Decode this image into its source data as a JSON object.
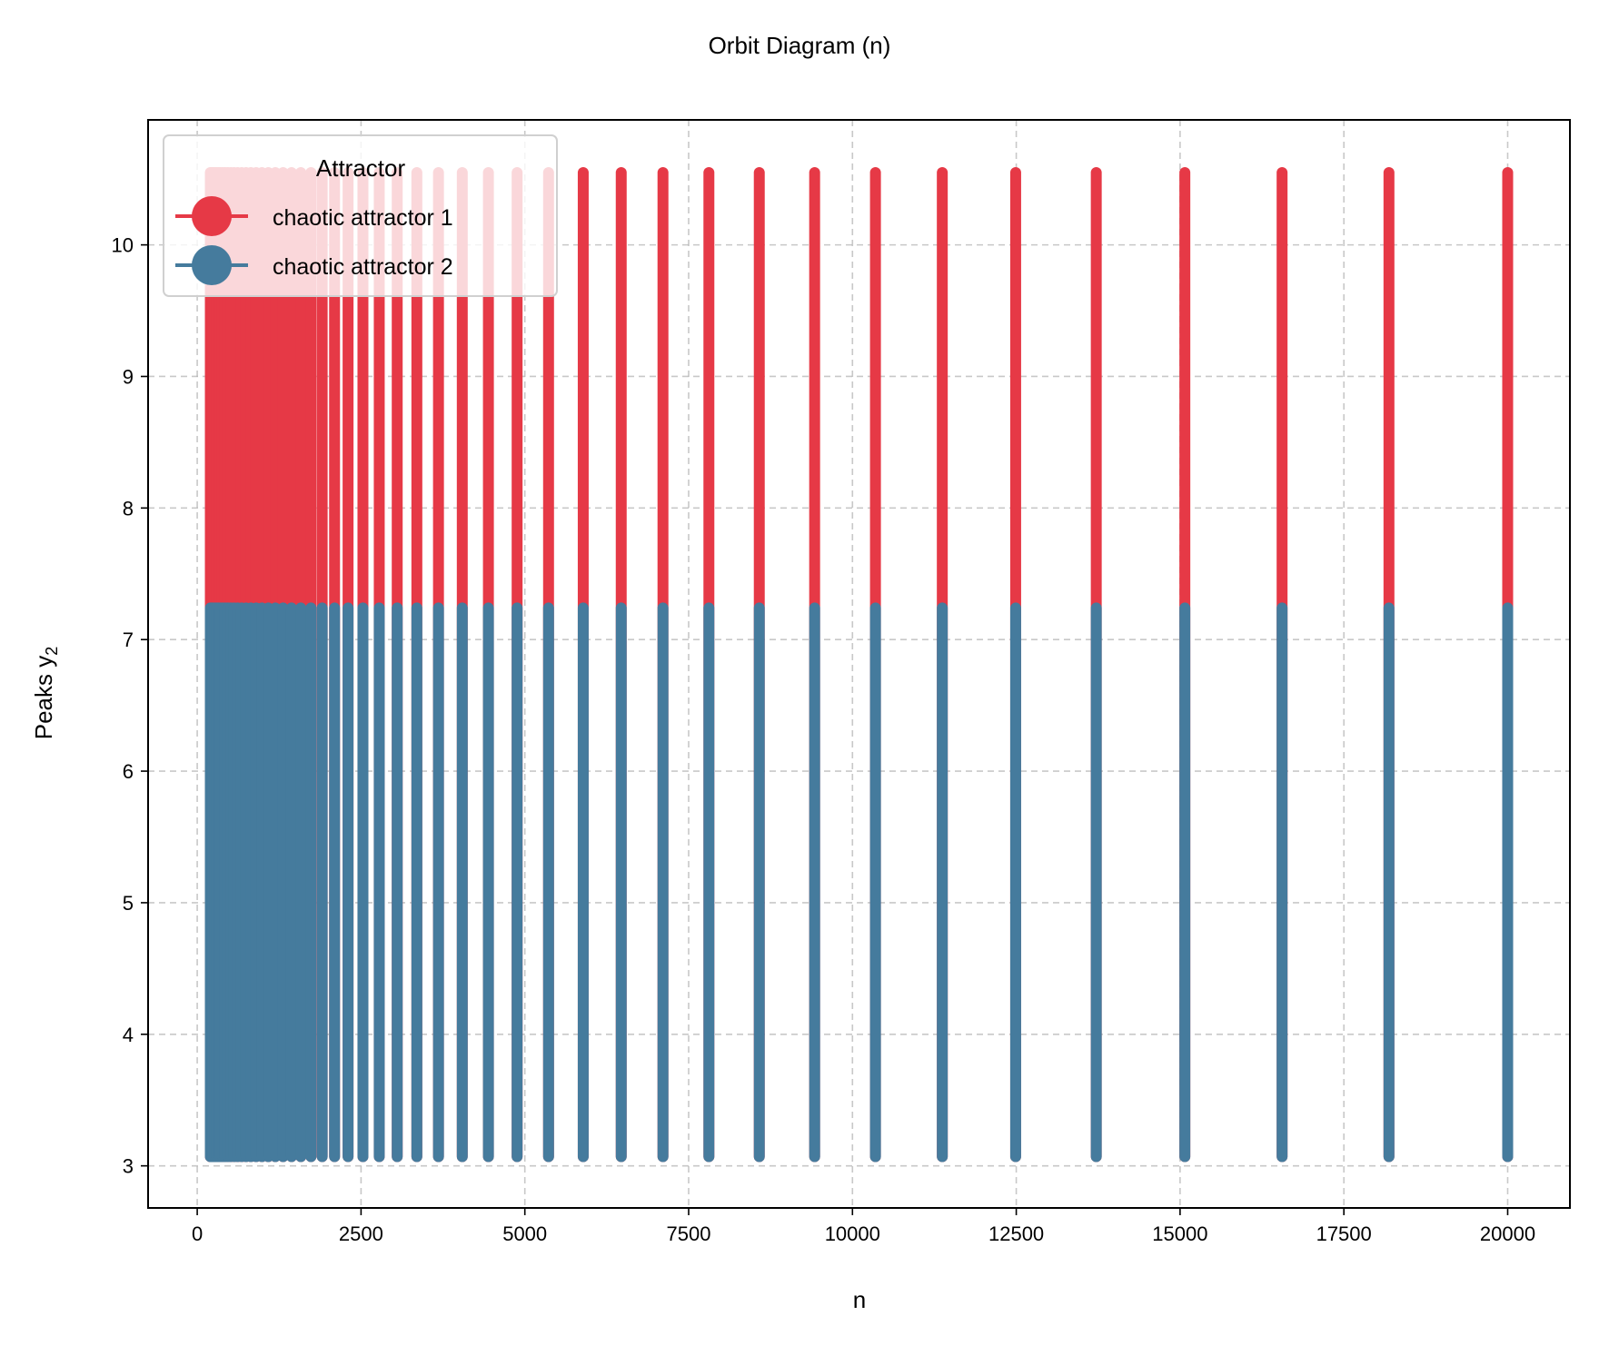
{
  "chart_data": {
    "type": "scatter",
    "title": "Orbit Diagram (n)",
    "xlabel": "n",
    "ylabel": "Peaks y",
    "ylabel_subscript": "2",
    "xlim": [
      -750,
      20950
    ],
    "ylim": [
      2.68,
      10.95
    ],
    "xticks": [
      0,
      2500,
      5000,
      7500,
      10000,
      12500,
      15000,
      17500,
      20000
    ],
    "xtick_labels": [
      "0",
      "2500",
      "5000",
      "7500",
      "10000",
      "12500",
      "15000",
      "17500",
      "20000"
    ],
    "yticks": [
      3,
      4,
      5,
      6,
      7,
      8,
      9,
      10
    ],
    "ytick_labels": [
      "3",
      "4",
      "5",
      "6",
      "7",
      "8",
      "9",
      "10"
    ],
    "grid": true,
    "legend": {
      "title": "Attractor",
      "placement": "upper-left"
    },
    "n_values": [
      200,
      219,
      241,
      265,
      291,
      320,
      351,
      386,
      424,
      466,
      512,
      562,
      617,
      678,
      745,
      819,
      899,
      988,
      1085,
      1192,
      1310,
      1439,
      1581,
      1736,
      1907,
      2096,
      2302,
      2529,
      2778,
      3052,
      3352,
      3682,
      4045,
      4444,
      4882,
      5362,
      5891,
      6471,
      7108,
      7809,
      8578,
      9423,
      10351,
      11371,
      12491,
      13721,
      15073,
      16557,
      18188,
      20000
    ],
    "series": [
      {
        "name": "chaotic attractor 1",
        "color": "#e63946",
        "y_range": [
          3.07,
          10.55
        ]
      },
      {
        "name": "chaotic attractor 2",
        "color": "#457b9d",
        "y_range": [
          3.07,
          7.24
        ]
      }
    ]
  }
}
